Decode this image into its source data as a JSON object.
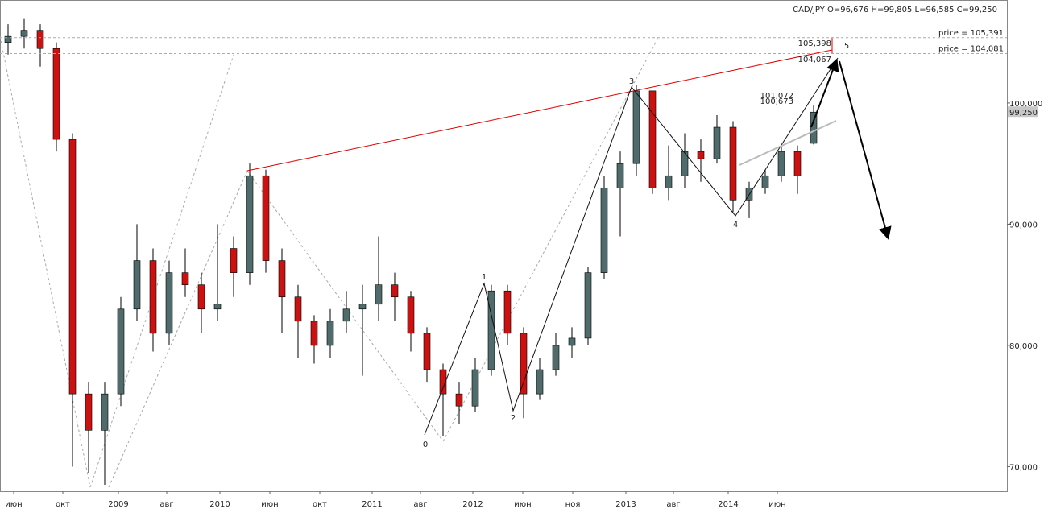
{
  "chart_data": {
    "type": "candlestick",
    "title": "CAD/JPY O=96,676 H=99,805 L=96,585 C=99,250",
    "categories": [
      null,
      null,
      null,
      null,
      null,
      null,
      null,
      null,
      null,
      null,
      null,
      null,
      null,
      null,
      null,
      null,
      null,
      null,
      null,
      null,
      null,
      null,
      null,
      null,
      null,
      null,
      null,
      null,
      null,
      null,
      null,
      null,
      null,
      null,
      null,
      null,
      null,
      null,
      null,
      null,
      null,
      null,
      null,
      null,
      null,
      null,
      null,
      null,
      null,
      null,
      null
    ],
    "open": [
      105,
      105.5,
      106,
      104.5,
      97,
      76,
      73,
      76,
      83,
      87,
      81,
      86,
      85,
      83,
      88,
      86,
      94,
      87,
      84,
      82,
      80,
      82,
      83,
      83.4,
      85,
      84,
      81,
      78,
      76,
      75,
      78,
      84.5,
      81,
      76,
      78,
      80,
      80.6,
      86,
      93,
      95,
      101,
      93,
      94,
      96,
      95.4,
      98,
      92,
      93,
      94,
      96,
      96.676
    ],
    "high": [
      106.5,
      107,
      106.5,
      105,
      97.5,
      77,
      77,
      84,
      90,
      88,
      87,
      88,
      86,
      90,
      89,
      95,
      94.5,
      88,
      85,
      82.5,
      83,
      84.5,
      85,
      89,
      86,
      84.5,
      81.5,
      78.5,
      77,
      79,
      85,
      85,
      81.5,
      79,
      81,
      81.5,
      86.5,
      94,
      96,
      101.5,
      101,
      96.5,
      97.5,
      97,
      99,
      98.5,
      93.5,
      94.5,
      96.5,
      96.5,
      99.805
    ],
    "low": [
      104,
      104.5,
      103,
      96,
      70,
      69.5,
      68.5,
      75,
      82,
      79.5,
      80,
      84,
      81,
      82,
      84,
      85,
      86,
      81,
      79,
      78.5,
      79,
      81,
      77.5,
      82,
      82,
      79.5,
      77,
      72.5,
      73.5,
      74.5,
      77.5,
      80,
      74,
      75.5,
      77.5,
      79,
      80,
      85.5,
      89,
      94,
      92.5,
      92,
      93,
      93.5,
      95,
      91,
      90.5,
      92.5,
      93.5,
      92.5,
      96.585
    ],
    "close": [
      105.5,
      106,
      104.5,
      97,
      76,
      73,
      76,
      83,
      87,
      81,
      86,
      85,
      83,
      83.4,
      86,
      94,
      87,
      84,
      82,
      80,
      82,
      83,
      83.4,
      85,
      84,
      81,
      78,
      76,
      75,
      78,
      84.5,
      81,
      76,
      78,
      80,
      80.6,
      86,
      93,
      95,
      101,
      93,
      94,
      96,
      95.4,
      98,
      92,
      93,
      94,
      96,
      94,
      99.25
    ],
    "up_color": "#4f6b6b",
    "down_color": "#cc1111",
    "xlim": [
      -0.5,
      62
    ],
    "ylim": [
      67.97,
      108.5
    ],
    "yticks": [
      {
        "value": 100,
        "label": "100,000"
      },
      {
        "value": 90,
        "label": "90,000"
      },
      {
        "value": 80,
        "label": "80,000"
      },
      {
        "value": 70,
        "label": "70,000"
      }
    ],
    "xticks": [
      {
        "value": 0.35,
        "label": "июн"
      },
      {
        "value": 3.4,
        "label": "окт"
      },
      {
        "value": 6.85,
        "label": "2009"
      },
      {
        "value": 9.85,
        "label": "авг"
      },
      {
        "value": 13.15,
        "label": "2010"
      },
      {
        "value": 16.25,
        "label": "июн"
      },
      {
        "value": 19.35,
        "label": "окт"
      },
      {
        "value": 22.6,
        "label": "2011"
      },
      {
        "value": 25.6,
        "label": "авг"
      },
      {
        "value": 28.85,
        "label": "2012"
      },
      {
        "value": 31.95,
        "label": "июн"
      },
      {
        "value": 35.05,
        "label": "ноя"
      },
      {
        "value": 38.35,
        "label": "2013"
      },
      {
        "value": 41.3,
        "label": "авг"
      },
      {
        "value": 44.7,
        "label": "2014"
      },
      {
        "value": 47.75,
        "label": "июн"
      }
    ],
    "hlines": [
      {
        "value": 105.391,
        "label": "price = 105,391"
      },
      {
        "value": 104.081,
        "label": "price = 104,081"
      }
    ],
    "price_tag": {
      "value": 99.25,
      "label": "99,250"
    },
    "annotations": [
      "0",
      "1",
      "2",
      "3",
      "4",
      "5",
      "105,398",
      "104,067",
      "101,072",
      "100,673"
    ]
  }
}
